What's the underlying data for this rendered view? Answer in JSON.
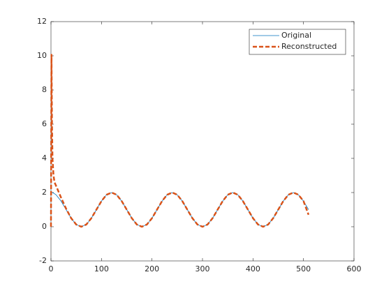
{
  "chart_data": {
    "type": "line",
    "x": [
      0,
      1,
      2,
      3,
      5,
      7,
      10,
      20,
      30,
      40,
      50,
      60,
      70,
      80,
      90,
      100,
      110,
      120,
      130,
      140,
      150,
      160,
      170,
      180,
      190,
      200,
      210,
      220,
      230,
      240,
      250,
      260,
      270,
      280,
      290,
      300,
      310,
      320,
      330,
      340,
      350,
      360,
      370,
      380,
      390,
      400,
      410,
      420,
      430,
      440,
      450,
      460,
      470,
      480,
      490,
      500,
      510
    ],
    "series": [
      {
        "name": "Original",
        "color": "#0072bd",
        "dash": false,
        "values": [
          2,
          2,
          1.99,
          1.99,
          1.97,
          1.93,
          1.87,
          1.5,
          1,
          0.5,
          0.13,
          0,
          0.13,
          0.5,
          1,
          1.5,
          1.87,
          2,
          1.87,
          1.5,
          1,
          0.5,
          0.13,
          0,
          0.13,
          0.5,
          1,
          1.5,
          1.87,
          2,
          1.87,
          1.5,
          1,
          0.5,
          0.13,
          0,
          0.13,
          0.5,
          1,
          1.5,
          1.87,
          2,
          1.87,
          1.5,
          1,
          0.5,
          0.13,
          0,
          0.13,
          0.5,
          1,
          1.5,
          1.87,
          2,
          1.87,
          1.5,
          1
        ]
      },
      {
        "name": "Reconstructed",
        "color": "#d95319",
        "dash": true,
        "values": [
          0,
          10.1,
          6,
          4,
          3,
          2.6,
          2.4,
          1.7,
          1.05,
          0.5,
          0.13,
          0,
          0.13,
          0.5,
          1,
          1.5,
          1.87,
          2,
          1.87,
          1.5,
          1,
          0.5,
          0.13,
          0,
          0.13,
          0.5,
          1,
          1.5,
          1.87,
          2,
          1.87,
          1.5,
          1,
          0.5,
          0.13,
          0,
          0.13,
          0.5,
          1,
          1.5,
          1.87,
          2,
          1.87,
          1.5,
          1,
          0.5,
          0.13,
          0,
          0.13,
          0.5,
          1,
          1.5,
          1.87,
          2,
          1.87,
          1.5,
          0.7
        ]
      }
    ],
    "xlim": [
      0,
      600
    ],
    "xticks": [
      0,
      100,
      200,
      300,
      400,
      500,
      600
    ],
    "ylim": [
      -2,
      12
    ],
    "yticks": [
      -2,
      0,
      2,
      4,
      6,
      8,
      10,
      12
    ],
    "legend": "northeast"
  }
}
